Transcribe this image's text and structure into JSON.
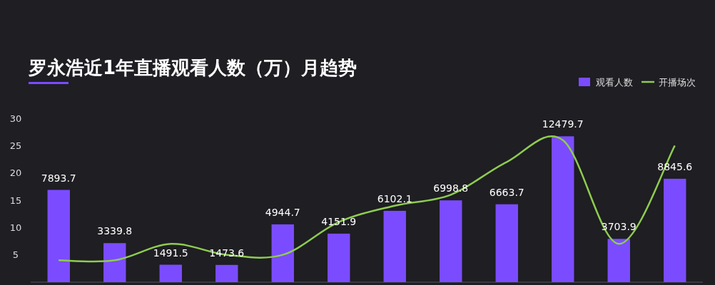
{
  "chart_data": {
    "type": "bar",
    "title": "罗永浩近1年直播观看人数（万）月趋势",
    "categories": [
      null,
      null,
      null,
      null,
      null,
      null,
      null,
      null,
      null,
      null,
      null,
      null
    ],
    "series": [
      {
        "name": "观看人数",
        "type": "bar",
        "axis": "y2",
        "color": "#7b4cff",
        "values": [
          7893.7,
          3339.8,
          1491.5,
          1473.6,
          4944.7,
          4151.9,
          6102.1,
          6998.8,
          6663.7,
          12479.7,
          3703.9,
          8845.6
        ],
        "value_labels": [
          "7893.7",
          "3339.8",
          "1491.5",
          "1473.6",
          "4944.7",
          "4151.9",
          "6102.1",
          "6998.8",
          "6663.7",
          "12479.7",
          "3703.9",
          "8845.6"
        ]
      },
      {
        "name": "开播场次",
        "type": "line",
        "color": "#8fcc4f",
        "values": [
          4,
          4,
          7,
          5,
          5,
          11,
          14,
          16,
          22,
          26,
          7,
          25
        ]
      }
    ],
    "ylim": [
      0,
      30
    ],
    "yticks": [
      5,
      10,
      15,
      20,
      25,
      30
    ],
    "tick_labels": "y",
    "legend": "top right",
    "grid": false,
    "marker": "none",
    "line_style": "solid"
  }
}
